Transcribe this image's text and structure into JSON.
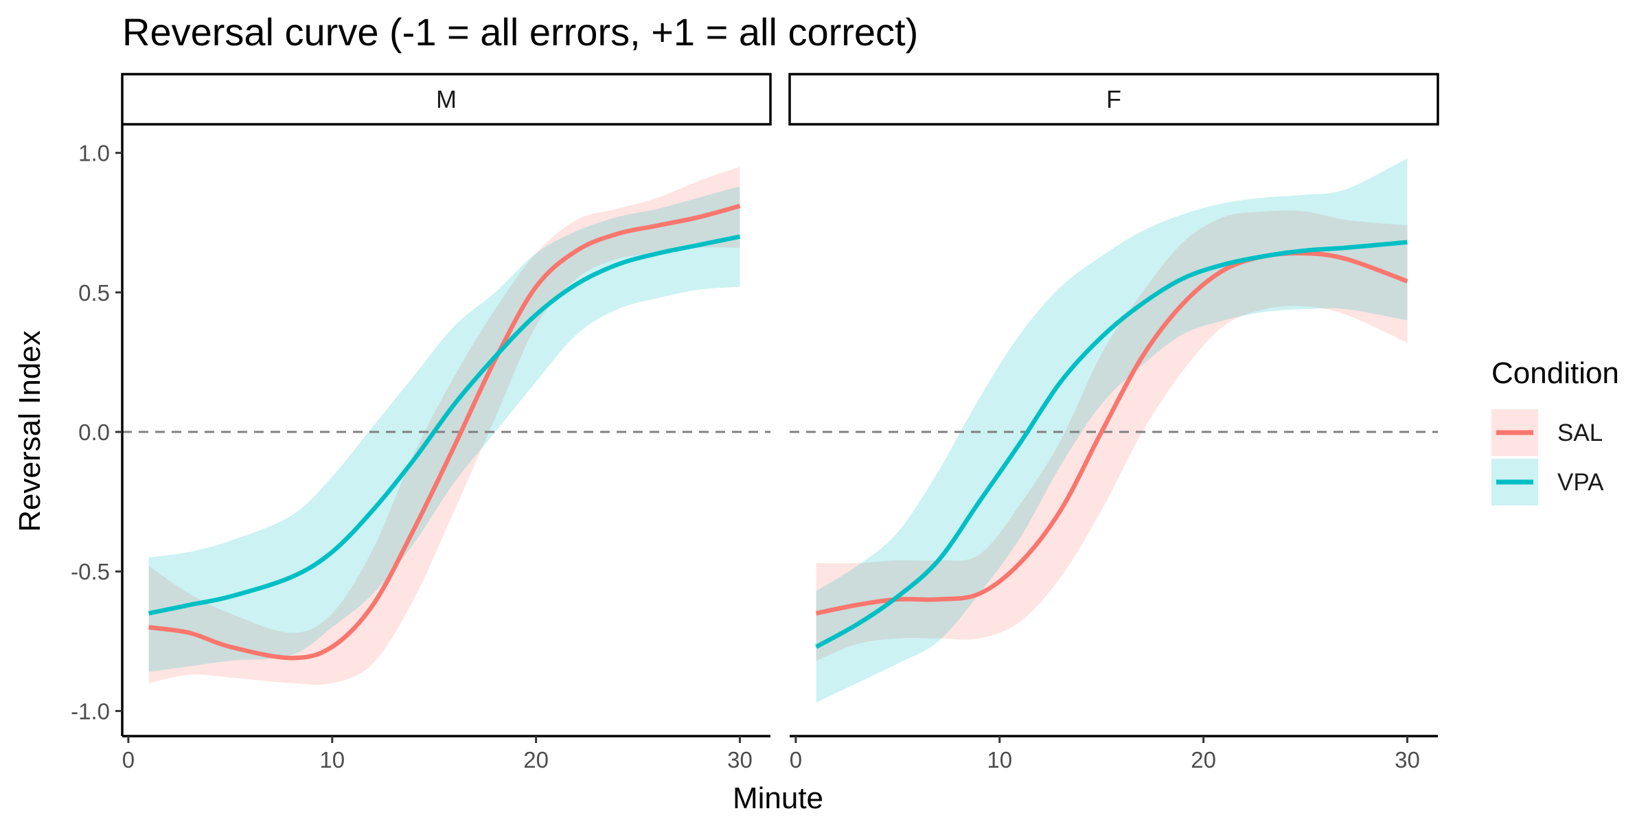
{
  "chart_data": {
    "type": "line",
    "title": "Reversal curve (-1 = all errors, +1 = all correct)",
    "xlabel": "Minute",
    "ylabel": "Reversal Index",
    "xlim": [
      -0.3,
      31.5
    ],
    "ylim": [
      -1.09,
      1.1
    ],
    "x_ticks": [
      0,
      10,
      20,
      30
    ],
    "x_tick_labels": [
      "0",
      "10",
      "20",
      "30"
    ],
    "y_ticks": [
      -1.0,
      -0.5,
      0.0,
      0.5,
      1.0
    ],
    "y_tick_labels": [
      "-1.0",
      "-0.5",
      "0.0",
      "0.5",
      "1.0"
    ],
    "reference_line": {
      "y": 0,
      "style": "dashed",
      "color": "#808080"
    },
    "grid": false,
    "legend": {
      "title": "Condition",
      "position": "right",
      "items": [
        {
          "label": "SAL",
          "color": "#F8766D"
        },
        {
          "label": "VPA",
          "color": "#00BFC4"
        }
      ]
    },
    "panels": [
      {
        "label": "M",
        "series": [
          {
            "name": "SAL",
            "color": "#F8766D",
            "x": [
              1,
              3,
              5,
              8,
              10,
              12,
              14,
              16,
              18,
              20,
              22,
              24,
              26,
              28,
              30
            ],
            "y": [
              -0.7,
              -0.72,
              -0.77,
              -0.81,
              -0.77,
              -0.62,
              -0.35,
              -0.05,
              0.26,
              0.52,
              0.65,
              0.71,
              0.74,
              0.77,
              0.81
            ],
            "lower": [
              -0.9,
              -0.87,
              -0.88,
              -0.9,
              -0.9,
              -0.83,
              -0.6,
              -0.28,
              0.05,
              0.38,
              0.55,
              0.62,
              0.64,
              0.66,
              0.66
            ],
            "upper": [
              -0.48,
              -0.58,
              -0.65,
              -0.72,
              -0.65,
              -0.42,
              -0.08,
              0.2,
              0.44,
              0.64,
              0.76,
              0.8,
              0.84,
              0.9,
              0.95
            ]
          },
          {
            "name": "VPA",
            "color": "#00BFC4",
            "x": [
              1,
              3,
              5,
              8,
              10,
              12,
              14,
              16,
              18,
              20,
              22,
              24,
              26,
              28,
              30
            ],
            "y": [
              -0.65,
              -0.62,
              -0.59,
              -0.52,
              -0.43,
              -0.28,
              -0.1,
              0.1,
              0.27,
              0.42,
              0.53,
              0.6,
              0.64,
              0.67,
              0.7
            ],
            "lower": [
              -0.86,
              -0.84,
              -0.82,
              -0.8,
              -0.7,
              -0.58,
              -0.4,
              -0.18,
              0.0,
              0.18,
              0.35,
              0.44,
              0.48,
              0.51,
              0.52
            ],
            "upper": [
              -0.45,
              -0.43,
              -0.39,
              -0.3,
              -0.16,
              0.02,
              0.2,
              0.38,
              0.5,
              0.64,
              0.72,
              0.77,
              0.8,
              0.84,
              0.88
            ]
          }
        ]
      },
      {
        "label": "F",
        "series": [
          {
            "name": "SAL",
            "color": "#F8766D",
            "x": [
              1,
              3,
              5,
              7,
              9,
              11,
              13,
              15,
              17,
              19,
              21,
              23,
              25,
              27,
              30
            ],
            "y": [
              -0.65,
              -0.62,
              -0.6,
              -0.6,
              -0.58,
              -0.47,
              -0.28,
              0.0,
              0.27,
              0.46,
              0.58,
              0.63,
              0.64,
              0.62,
              0.54
            ],
            "lower": [
              -0.82,
              -0.76,
              -0.74,
              -0.74,
              -0.74,
              -0.68,
              -0.52,
              -0.28,
              0.0,
              0.22,
              0.38,
              0.44,
              0.45,
              0.42,
              0.32
            ],
            "upper": [
              -0.47,
              -0.47,
              -0.46,
              -0.46,
              -0.44,
              -0.26,
              -0.03,
              0.28,
              0.5,
              0.68,
              0.77,
              0.79,
              0.79,
              0.76,
              0.74
            ]
          },
          {
            "name": "VPA",
            "color": "#00BFC4",
            "x": [
              1,
              3,
              5,
              7,
              9,
              11,
              13,
              15,
              17,
              19,
              21,
              23,
              25,
              27,
              30
            ],
            "y": [
              -0.77,
              -0.69,
              -0.59,
              -0.46,
              -0.25,
              -0.04,
              0.18,
              0.34,
              0.46,
              0.55,
              0.6,
              0.63,
              0.65,
              0.66,
              0.68
            ],
            "lower": [
              -0.97,
              -0.9,
              -0.83,
              -0.75,
              -0.58,
              -0.38,
              -0.12,
              0.1,
              0.24,
              0.35,
              0.4,
              0.43,
              0.44,
              0.44,
              0.4
            ],
            "upper": [
              -0.57,
              -0.48,
              -0.36,
              -0.14,
              0.12,
              0.35,
              0.52,
              0.63,
              0.72,
              0.78,
              0.82,
              0.84,
              0.85,
              0.87,
              0.98
            ]
          }
        ]
      }
    ]
  }
}
